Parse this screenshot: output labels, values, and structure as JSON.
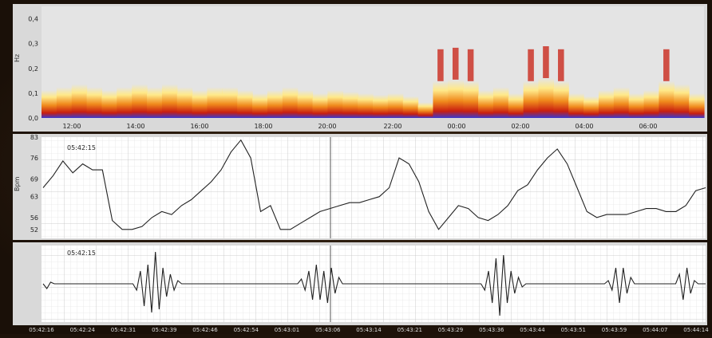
{
  "chart_data": [
    {
      "type": "heatmap",
      "ylabel": "Hz",
      "y_ticks": [
        "0,4",
        "0,3",
        "0,2",
        "0,1",
        "0,0"
      ],
      "ylim": [
        0,
        0.45
      ],
      "x_ticks": [
        "12:00",
        "14:00",
        "16:00",
        "18:00",
        "20:00",
        "22:00",
        "00:00",
        "02:00",
        "04:00",
        "06:00"
      ],
      "colors": {
        "background": "#e4e4e4",
        "low": "#ffe98a",
        "mid": "#f08a1c",
        "high": "#c81e10",
        "deep": "#2c2cb0"
      },
      "band_intensity": [
        0.6,
        0.7,
        0.8,
        0.7,
        0.6,
        0.7,
        0.8,
        0.7,
        0.8,
        0.7,
        0.6,
        0.7,
        0.7,
        0.6,
        0.5,
        0.6,
        0.7,
        0.6,
        0.5,
        0.6,
        0.55,
        0.5,
        0.45,
        0.5,
        0.4,
        0.2,
        0.9,
        0.95,
        0.9,
        0.6,
        0.7,
        0.5,
        0.9,
        1.0,
        0.9,
        0.5,
        0.4,
        0.6,
        0.7,
        0.5,
        0.6,
        0.9,
        0.8,
        0.5
      ],
      "grid": false
    },
    {
      "type": "line",
      "ylabel": "Bpm",
      "y_ticks": [
        "83",
        "76",
        "69",
        "63",
        "56",
        "52"
      ],
      "ylim": [
        49,
        83
      ],
      "timestamp": "05:42:15",
      "series": [
        {
          "values": [
            66,
            70,
            75,
            71,
            74,
            72,
            72,
            55,
            52,
            52,
            53,
            56,
            58,
            57,
            60,
            62,
            65,
            68,
            72,
            78,
            82,
            76,
            58,
            60,
            52,
            52,
            54,
            56,
            58,
            59,
            60,
            61,
            61,
            62,
            63,
            66,
            76,
            74,
            68,
            58,
            52,
            56,
            60,
            59,
            56,
            55,
            57,
            60,
            65,
            67,
            72,
            76,
            79,
            74,
            66,
            58,
            56,
            57,
            57,
            57,
            58,
            59,
            59,
            58,
            58,
            60,
            65,
            66
          ]
        }
      ],
      "cursor_fraction": 0.5,
      "grid": true
    },
    {
      "type": "line",
      "timestamp": "05:42:15",
      "x_ticks": [
        "05:42:16",
        "05:42:24",
        "05:42:31",
        "05:42:39",
        "05:42:46",
        "05:42:54",
        "05:43:01",
        "05:43:06",
        "05:43:14",
        "05:43:21",
        "05:43:29",
        "05:43:36",
        "05:43:44",
        "05:43:51",
        "05:43:59",
        "05:44:07",
        "05:44:14"
      ],
      "series": [
        {
          "values": [
            0,
            -0.15,
            0.05,
            0,
            0,
            0,
            0,
            0,
            0,
            0,
            0,
            0,
            0,
            0,
            0,
            0,
            0,
            0,
            0,
            0,
            0,
            0,
            0,
            0,
            0,
            -0.2,
            0.4,
            -0.7,
            0.6,
            -0.9,
            1.0,
            -0.8,
            0.5,
            -0.4,
            0.3,
            -0.2,
            0.1,
            0,
            0,
            0,
            0,
            0,
            0,
            0,
            0,
            0,
            0,
            0,
            0,
            0,
            0,
            0,
            0,
            0,
            0,
            0,
            0,
            0,
            0,
            0,
            0,
            0,
            0,
            0,
            0,
            0,
            0,
            0,
            0,
            0.15,
            -0.2,
            0.4,
            -0.5,
            0.6,
            -0.5,
            0.4,
            -0.6,
            0.5,
            -0.3,
            0.2,
            0,
            0,
            0,
            0,
            0,
            0,
            0,
            0,
            0,
            0,
            0,
            0,
            0,
            0,
            0,
            0,
            0,
            0,
            0,
            0,
            0,
            0,
            0,
            0,
            0,
            0,
            0,
            0,
            0,
            0,
            0,
            0,
            0,
            0,
            0,
            0,
            0,
            0,
            -0.2,
            0.4,
            -0.6,
            0.8,
            -1.0,
            0.9,
            -0.6,
            0.4,
            -0.3,
            0.2,
            -0.1,
            0,
            0,
            0,
            0,
            0,
            0,
            0,
            0,
            0,
            0,
            0,
            0,
            0,
            0,
            0,
            0,
            0,
            0,
            0,
            0,
            0,
            0,
            0.1,
            -0.2,
            0.5,
            -0.6,
            0.5,
            -0.3,
            0.2,
            0,
            0,
            0,
            0,
            0,
            0,
            0,
            0,
            0,
            0,
            0,
            0,
            0.3,
            -0.5,
            0.5,
            -0.3,
            0.1,
            0,
            0,
            0
          ]
        }
      ],
      "cursor_fraction": 0.5,
      "grid": true
    }
  ]
}
